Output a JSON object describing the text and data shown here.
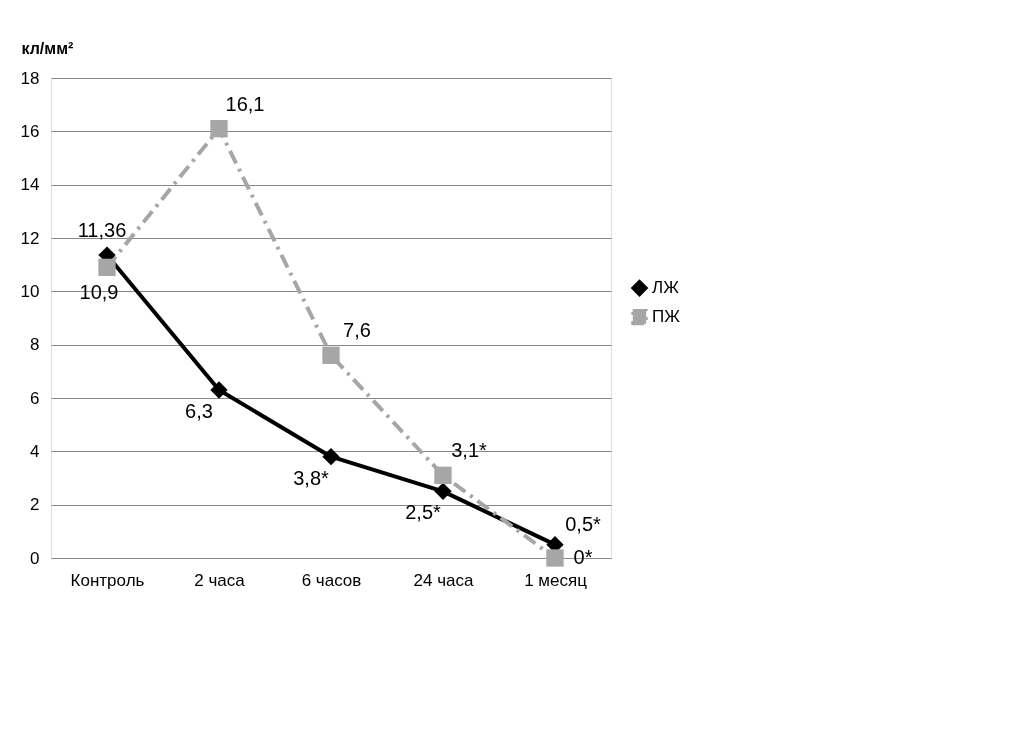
{
  "chart_data": {
    "type": "line",
    "ylabel": "кл/мм²",
    "categories": [
      "Контроль",
      "2 часа",
      "6 часов",
      "24 часа",
      "1 месяц"
    ],
    "series": [
      {
        "name": "ЛЖ",
        "color": "#000000",
        "values": [
          11.36,
          6.3,
          3.8,
          2.5,
          0.5
        ],
        "value_labels": [
          "11,36",
          "6,3",
          "3,8*",
          "2,5*",
          "0,5*"
        ],
        "marker": "diamond",
        "line_style": "solid"
      },
      {
        "name": "ПЖ",
        "color": "#a6a6a6",
        "values": [
          10.9,
          16.1,
          7.6,
          3.1,
          0
        ],
        "value_labels": [
          "10,9",
          "16,1",
          "7,6",
          "3,1*",
          "0*"
        ],
        "marker": "square",
        "line_style": "dashed"
      }
    ],
    "ylim": [
      0,
      18
    ],
    "yticks": [
      0,
      2,
      4,
      6,
      8,
      10,
      12,
      14,
      16,
      18
    ],
    "grid": "y",
    "legend": "right"
  }
}
